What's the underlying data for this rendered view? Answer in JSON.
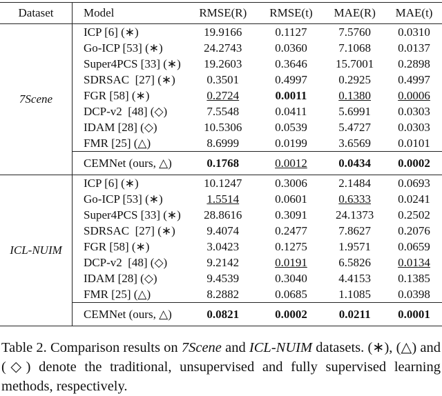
{
  "table": {
    "header": [
      "Dataset",
      "Model",
      "RMSE(R)",
      "RMSE(t)",
      "MAE(R)",
      "MAE(t)"
    ],
    "groups": [
      {
        "dataset": "7Scene",
        "rows": [
          [
            "ICP [6] (∗)",
            "19.9166",
            "0.1127",
            "7.5760",
            "0.0310"
          ],
          [
            "Go-ICP [53] (∗)",
            "24.2743",
            "0.0360",
            "7.1068",
            "0.0137"
          ],
          [
            "Super4PCS [33] (∗)",
            "19.2603",
            "0.3646",
            "15.7001",
            "0.2898"
          ],
          [
            "SDRSAC  [27] (∗)",
            "0.3501",
            "0.4997",
            "0.2925",
            "0.4997"
          ],
          [
            "FGR [58] (∗)",
            "0.2724",
            "0.0011",
            "0.1380",
            "0.0006"
          ],
          [
            "DCP-v2  [48] (◇)",
            "7.5548",
            "0.0411",
            "5.6991",
            "0.0303"
          ],
          [
            "IDAM [28] (◇)",
            "10.5306",
            "0.0539",
            "5.4727",
            "0.0303"
          ],
          [
            "FMR [25] (△)",
            "8.6999",
            "0.0199",
            "3.6569",
            "0.0101"
          ]
        ],
        "ours": [
          "CEMNet (ours, △)",
          "0.1768",
          "0.0012",
          "0.0434",
          "0.0002"
        ]
      },
      {
        "dataset": "ICL-NUIM",
        "rows": [
          [
            "ICP [6] (∗)",
            "10.1247",
            "0.3006",
            "2.1484",
            "0.0693"
          ],
          [
            "Go-ICP [53] (∗)",
            "1.5514",
            "0.0601",
            "0.6333",
            "0.0241"
          ],
          [
            "Super4PCS [33] (∗)",
            "28.8616",
            "0.3091",
            "24.1373",
            "0.2502"
          ],
          [
            "SDRSAC  [27] (∗)",
            "9.4074",
            "0.2477",
            "7.8627",
            "0.2076"
          ],
          [
            "FGR [58] (∗)",
            "3.0423",
            "0.1275",
            "1.9571",
            "0.0659"
          ],
          [
            "DCP-v2  [48] (◇)",
            "9.2142",
            "0.0191",
            "6.5826",
            "0.0134"
          ],
          [
            "IDAM [28] (◇)",
            "9.4539",
            "0.3040",
            "4.4153",
            "0.1385"
          ],
          [
            "FMR [25] (△)",
            "8.2882",
            "0.0685",
            "1.1085",
            "0.0398"
          ]
        ],
        "ours": [
          "CEMNet (ours, △)",
          "0.0821",
          "0.0002",
          "0.0211",
          "0.0001"
        ]
      }
    ],
    "caption": [
      "Table 2. Comparison results on ",
      "7Scene",
      " and ",
      "ICL-NUIM",
      " datasets. (∗), (△) and (◇) denote the traditional, unsupervised and fully supervised learning methods, respectively."
    ]
  }
}
